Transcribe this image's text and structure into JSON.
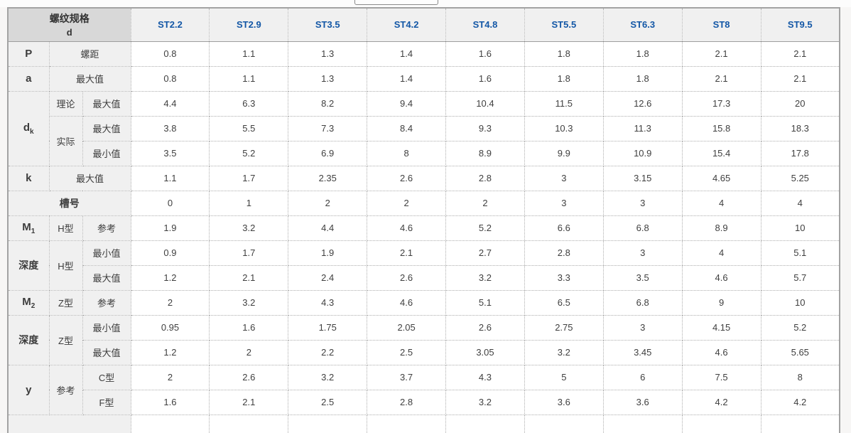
{
  "colors": {
    "accent_blue": "#1357a6",
    "corner_bg": "#d8d8d8",
    "label_bg": "#f0f0f0",
    "border_dotted": "#adadad",
    "border_outer": "#a3a3a3",
    "text": "#3f3f3f",
    "page_bg": "#f7f6f5",
    "strip_bg": "#fcfcfc"
  },
  "table": {
    "header": {
      "corner_line1": "螺纹规格",
      "corner_line2": "d",
      "specs": [
        "ST2.2",
        "ST2.9",
        "ST3.5",
        "ST4.2",
        "ST4.8",
        "ST5.5",
        "ST6.3",
        "ST8",
        "ST9.5"
      ]
    },
    "body_rows": [
      {
        "cells": [
          {
            "t": "P",
            "b": 1
          },
          {
            "t": "螺距",
            "cs": 2
          }
        ],
        "values": [
          "0.8",
          "1.1",
          "1.3",
          "1.4",
          "1.6",
          "1.8",
          "1.8",
          "2.1",
          "2.1"
        ]
      },
      {
        "cells": [
          {
            "t": "a",
            "b": 1
          },
          {
            "t": "最大值",
            "cs": 2
          }
        ],
        "values": [
          "0.8",
          "1.1",
          "1.3",
          "1.4",
          "1.6",
          "1.8",
          "1.8",
          "2.1",
          "2.1"
        ]
      },
      {
        "cells": [
          {
            "t": "d",
            "sub": "k",
            "b": 1,
            "rs": 3
          },
          {
            "t": "理论"
          },
          {
            "t": "最大值"
          }
        ],
        "values": [
          "4.4",
          "6.3",
          "8.2",
          "9.4",
          "10.4",
          "11.5",
          "12.6",
          "17.3",
          "20"
        ]
      },
      {
        "cells": [
          {
            "t": "实际",
            "rs": 2
          },
          {
            "t": "最大值"
          }
        ],
        "values": [
          "3.8",
          "5.5",
          "7.3",
          "8.4",
          "9.3",
          "10.3",
          "11.3",
          "15.8",
          "18.3"
        ]
      },
      {
        "cells": [
          {
            "t": "最小值"
          }
        ],
        "values": [
          "3.5",
          "5.2",
          "6.9",
          "8",
          "8.9",
          "9.9",
          "10.9",
          "15.4",
          "17.8"
        ]
      },
      {
        "cells": [
          {
            "t": "k",
            "b": 1
          },
          {
            "t": "最大值",
            "cs": 2
          }
        ],
        "values": [
          "1.1",
          "1.7",
          "2.35",
          "2.6",
          "2.8",
          "3",
          "3.15",
          "4.65",
          "5.25"
        ]
      },
      {
        "cells": [
          {
            "t": "槽号",
            "b": 1,
            "cs": 3
          }
        ],
        "values": [
          "0",
          "1",
          "2",
          "2",
          "2",
          "3",
          "3",
          "4",
          "4"
        ]
      },
      {
        "cells": [
          {
            "t": "M",
            "sub": "1",
            "b": 1
          },
          {
            "t": "H型"
          },
          {
            "t": "参考"
          }
        ],
        "values": [
          "1.9",
          "3.2",
          "4.4",
          "4.6",
          "5.2",
          "6.6",
          "6.8",
          "8.9",
          "10"
        ]
      },
      {
        "cells": [
          {
            "t": "深度",
            "b": 1,
            "rs": 2
          },
          {
            "t": "H型",
            "rs": 2
          },
          {
            "t": "最小值"
          }
        ],
        "values": [
          "0.9",
          "1.7",
          "1.9",
          "2.1",
          "2.7",
          "2.8",
          "3",
          "4",
          "5.1"
        ]
      },
      {
        "cells": [
          {
            "t": "最大值"
          }
        ],
        "values": [
          "1.2",
          "2.1",
          "2.4",
          "2.6",
          "3.2",
          "3.3",
          "3.5",
          "4.6",
          "5.7"
        ]
      },
      {
        "cells": [
          {
            "t": "M",
            "sub": "2",
            "b": 1
          },
          {
            "t": "Z型"
          },
          {
            "t": "参考"
          }
        ],
        "values": [
          "2",
          "3.2",
          "4.3",
          "4.6",
          "5.1",
          "6.5",
          "6.8",
          "9",
          "10"
        ]
      },
      {
        "cells": [
          {
            "t": "深度",
            "b": 1,
            "rs": 2
          },
          {
            "t": "Z型",
            "rs": 2
          },
          {
            "t": "最小值"
          }
        ],
        "values": [
          "0.95",
          "1.6",
          "1.75",
          "2.05",
          "2.6",
          "2.75",
          "3",
          "4.15",
          "5.2"
        ]
      },
      {
        "cells": [
          {
            "t": "最大值"
          }
        ],
        "values": [
          "1.2",
          "2",
          "2.2",
          "2.5",
          "3.05",
          "3.2",
          "3.45",
          "4.6",
          "5.65"
        ]
      },
      {
        "cells": [
          {
            "t": "y",
            "b": 1,
            "rs": 2
          },
          {
            "t": "参考",
            "rs": 2
          },
          {
            "t": "C型"
          }
        ],
        "values": [
          "2",
          "2.6",
          "3.2",
          "3.7",
          "4.3",
          "5",
          "6",
          "7.5",
          "8"
        ]
      },
      {
        "cells": [
          {
            "t": "F型"
          }
        ],
        "values": [
          "1.6",
          "2.1",
          "2.5",
          "2.8",
          "3.2",
          "3.6",
          "3.6",
          "4.2",
          "4.2"
        ]
      },
      {
        "cells": [
          {
            "t": "",
            "cs": 3
          }
        ],
        "values": [
          "",
          "",
          "",
          "",
          "",
          "",
          "",
          "",
          ""
        ]
      }
    ]
  }
}
